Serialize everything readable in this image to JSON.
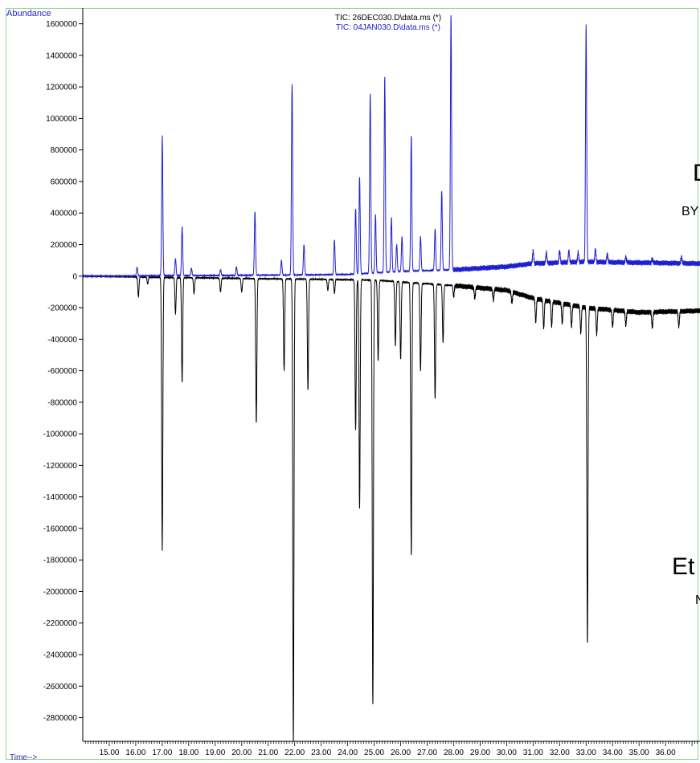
{
  "chart_data": {
    "type": "line",
    "ylabel": "Abundance",
    "xlabel": "Time-->",
    "xlim": [
      14.0,
      37.3
    ],
    "ylim": [
      -2950000,
      1700000
    ],
    "x_ticks": [
      15,
      16,
      17,
      18,
      19,
      20,
      21,
      22,
      23,
      24,
      25,
      26,
      27,
      28,
      29,
      30,
      31,
      32,
      33,
      34,
      35,
      36
    ],
    "x_tick_labels": [
      "15.00",
      "16.00",
      "17.00",
      "18.00",
      "19.00",
      "20.00",
      "21.00",
      "22.00",
      "23.00",
      "24.00",
      "25.00",
      "26.00",
      "27.00",
      "28.00",
      "29.00",
      "30.00",
      "31.00",
      "32.00",
      "33.00",
      "34.00",
      "35.00",
      "36.00"
    ],
    "y_ticks": [
      1600000,
      1400000,
      1200000,
      1000000,
      800000,
      600000,
      400000,
      200000,
      0,
      -200000,
      -400000,
      -600000,
      -800000,
      -1000000,
      -1200000,
      -1400000,
      -1600000,
      -1800000,
      -2000000,
      -2200000,
      -2400000,
      -2600000,
      -2800000
    ],
    "y_tick_labels": [
      "1600000",
      "1400000",
      "1200000",
      "1000000",
      "800000",
      "600000",
      "400000",
      "200000",
      "0",
      "-200000",
      "-400000",
      "-600000",
      "-800000",
      "-1000000",
      "-1200000",
      "-1400000",
      "-1600000",
      "-1800000",
      "-2000000",
      "-2200000",
      "-2400000",
      "-2600000",
      "-2800000"
    ],
    "grid": false,
    "legend_position": "top-center",
    "series": [
      {
        "name": "TIC: 26DEC030.D\\data.ms (*)",
        "color": "#000000",
        "baseline": [
          [
            14.0,
            0
          ],
          [
            16.0,
            -5000
          ],
          [
            20.0,
            -15000
          ],
          [
            23.0,
            -20000
          ],
          [
            25.0,
            -25000
          ],
          [
            28.0,
            -60000
          ],
          [
            30.0,
            -90000
          ],
          [
            31.0,
            -140000
          ],
          [
            32.0,
            -170000
          ],
          [
            33.0,
            -200000
          ],
          [
            35.0,
            -230000
          ],
          [
            37.3,
            -220000
          ]
        ],
        "peaks": [
          [
            16.1,
            -130000
          ],
          [
            16.45,
            -50000
          ],
          [
            17.0,
            -1740000
          ],
          [
            17.5,
            -240000
          ],
          [
            17.75,
            -670000
          ],
          [
            18.2,
            -110000
          ],
          [
            19.2,
            -100000
          ],
          [
            20.0,
            -100000
          ],
          [
            20.55,
            -930000
          ],
          [
            21.6,
            -600000
          ],
          [
            21.95,
            -2960000
          ],
          [
            22.5,
            -720000
          ],
          [
            23.25,
            -90000
          ],
          [
            23.5,
            -110000
          ],
          [
            24.3,
            -980000
          ],
          [
            24.45,
            -1480000
          ],
          [
            24.95,
            -2720000
          ],
          [
            25.15,
            -540000
          ],
          [
            25.8,
            -440000
          ],
          [
            26.0,
            -530000
          ],
          [
            26.4,
            -1770000
          ],
          [
            26.75,
            -600000
          ],
          [
            27.3,
            -780000
          ],
          [
            27.6,
            -420000
          ],
          [
            28.0,
            -130000
          ],
          [
            28.8,
            -140000
          ],
          [
            29.5,
            -150000
          ],
          [
            30.2,
            -170000
          ],
          [
            31.1,
            -290000
          ],
          [
            31.4,
            -330000
          ],
          [
            31.7,
            -320000
          ],
          [
            32.1,
            -300000
          ],
          [
            32.45,
            -320000
          ],
          [
            32.8,
            -360000
          ],
          [
            33.05,
            -2330000
          ],
          [
            33.4,
            -370000
          ],
          [
            34.0,
            -320000
          ],
          [
            34.5,
            -310000
          ],
          [
            35.5,
            -330000
          ],
          [
            36.5,
            -320000
          ]
        ]
      },
      {
        "name": "TIC: 04JAN030.D\\data.ms (*)",
        "color": "#1f1fcf",
        "baseline": [
          [
            14.0,
            0
          ],
          [
            20.0,
            5000
          ],
          [
            24.0,
            10000
          ],
          [
            26.0,
            30000
          ],
          [
            28.0,
            40000
          ],
          [
            30.0,
            60000
          ],
          [
            31.0,
            80000
          ],
          [
            33.0,
            90000
          ],
          [
            37.3,
            80000
          ]
        ],
        "peaks": [
          [
            16.05,
            55000
          ],
          [
            17.0,
            890000
          ],
          [
            17.5,
            110000
          ],
          [
            17.75,
            310000
          ],
          [
            18.1,
            50000
          ],
          [
            19.2,
            40000
          ],
          [
            19.8,
            60000
          ],
          [
            20.5,
            410000
          ],
          [
            21.5,
            100000
          ],
          [
            21.9,
            1220000
          ],
          [
            22.35,
            200000
          ],
          [
            23.5,
            230000
          ],
          [
            24.3,
            430000
          ],
          [
            24.45,
            630000
          ],
          [
            24.85,
            1160000
          ],
          [
            25.05,
            390000
          ],
          [
            25.4,
            1260000
          ],
          [
            25.65,
            370000
          ],
          [
            25.85,
            200000
          ],
          [
            26.05,
            250000
          ],
          [
            26.4,
            890000
          ],
          [
            26.75,
            250000
          ],
          [
            27.3,
            300000
          ],
          [
            27.55,
            540000
          ],
          [
            27.9,
            1650000
          ],
          [
            31.0,
            160000
          ],
          [
            31.5,
            150000
          ],
          [
            32.0,
            160000
          ],
          [
            32.35,
            160000
          ],
          [
            32.7,
            150000
          ],
          [
            33.0,
            1580000
          ],
          [
            33.35,
            170000
          ],
          [
            33.8,
            140000
          ],
          [
            34.5,
            120000
          ],
          [
            35.5,
            110000
          ],
          [
            36.6,
            120000
          ]
        ]
      }
    ]
  },
  "overlay_texts": [
    "D",
    "BY",
    "Et",
    "N"
  ]
}
